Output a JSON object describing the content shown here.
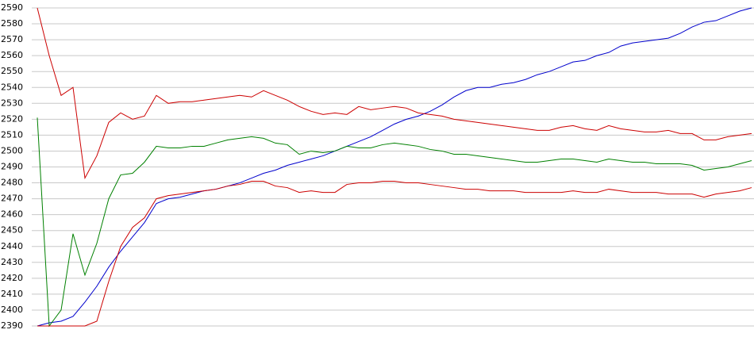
{
  "chart_data": {
    "type": "line",
    "ylim": [
      2390,
      2590
    ],
    "yticks": [
      2390,
      2400,
      2410,
      2420,
      2430,
      2440,
      2450,
      2460,
      2470,
      2480,
      2490,
      2500,
      2510,
      2520,
      2530,
      2540,
      2550,
      2560,
      2570,
      2580,
      2590
    ],
    "grid": true,
    "series": [
      {
        "color": "#0000cc",
        "values": [
          2390,
          2392,
          2393,
          2396,
          2405,
          2415,
          2427,
          2437,
          2446,
          2455,
          2467,
          2470,
          2471,
          2473,
          2475,
          2476,
          2478,
          2480,
          2483,
          2486,
          2488,
          2491,
          2493,
          2495,
          2497,
          2500,
          2503,
          2506,
          2509,
          2513,
          2517,
          2520,
          2522,
          2525,
          2529,
          2534,
          2538,
          2540,
          2540,
          2542,
          2543,
          2545,
          2548,
          2550,
          2553,
          2556,
          2557,
          2560,
          2562,
          2566,
          2568,
          2569,
          2570,
          2571,
          2574,
          2578,
          2581,
          2582,
          2585,
          2588,
          2590
        ]
      },
      {
        "color": "#cc0000",
        "values": [
          2590,
          2560,
          2535,
          2540,
          2483,
          2497,
          2518,
          2524,
          2520,
          2522,
          2535,
          2530,
          2531,
          2531,
          2532,
          2533,
          2534,
          2535,
          2534,
          2538,
          2535,
          2532,
          2528,
          2525,
          2523,
          2524,
          2523,
          2528,
          2526,
          2527,
          2528,
          2527,
          2524,
          2523,
          2522,
          2520,
          2519,
          2518,
          2517,
          2516,
          2515,
          2514,
          2513,
          2513,
          2515,
          2516,
          2514,
          2513,
          2516,
          2514,
          2513,
          2512,
          2512,
          2513,
          2511,
          2511,
          2507,
          2507,
          2509,
          2510,
          2511
        ]
      },
      {
        "color": "#008000",
        "values": [
          2521,
          2390,
          2400,
          2448,
          2422,
          2442,
          2470,
          2485,
          2486,
          2493,
          2503,
          2502,
          2502,
          2503,
          2503,
          2505,
          2507,
          2508,
          2509,
          2508,
          2505,
          2504,
          2498,
          2500,
          2499,
          2500,
          2503,
          2502,
          2502,
          2504,
          2505,
          2504,
          2503,
          2501,
          2500,
          2498,
          2498,
          2497,
          2496,
          2495,
          2494,
          2493,
          2493,
          2494,
          2495,
          2495,
          2494,
          2493,
          2495,
          2494,
          2493,
          2493,
          2492,
          2492,
          2492,
          2491,
          2488,
          2489,
          2490,
          2492,
          2494
        ]
      },
      {
        "color": "#cc0000",
        "values": [
          2390,
          2390,
          2390,
          2390,
          2390,
          2393,
          2418,
          2440,
          2452,
          2458,
          2470,
          2472,
          2473,
          2474,
          2475,
          2476,
          2478,
          2479,
          2481,
          2481,
          2478,
          2477,
          2474,
          2475,
          2474,
          2474,
          2479,
          2480,
          2480,
          2481,
          2481,
          2480,
          2480,
          2479,
          2478,
          2477,
          2476,
          2476,
          2475,
          2475,
          2475,
          2474,
          2474,
          2474,
          2474,
          2475,
          2474,
          2474,
          2476,
          2475,
          2474,
          2474,
          2474,
          2473,
          2473,
          2473,
          2471,
          2473,
          2474,
          2475,
          2477
        ]
      }
    ]
  }
}
